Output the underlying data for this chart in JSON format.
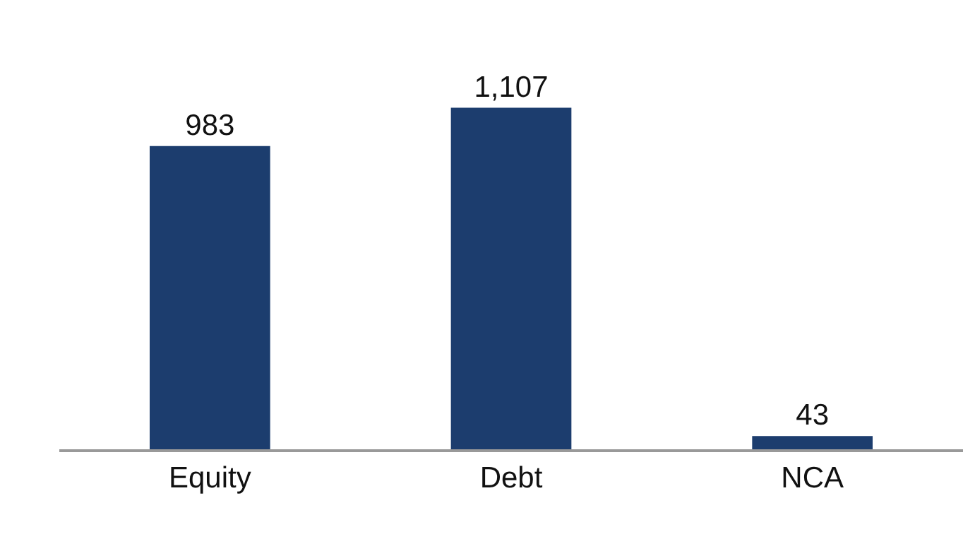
{
  "chart_data": {
    "type": "bar",
    "categories": [
      "Equity",
      "Debt",
      "NCA"
    ],
    "values": [
      983,
      1107,
      43
    ],
    "value_labels": [
      "983",
      "1,107",
      "43"
    ],
    "color": "#1c3d6e"
  }
}
